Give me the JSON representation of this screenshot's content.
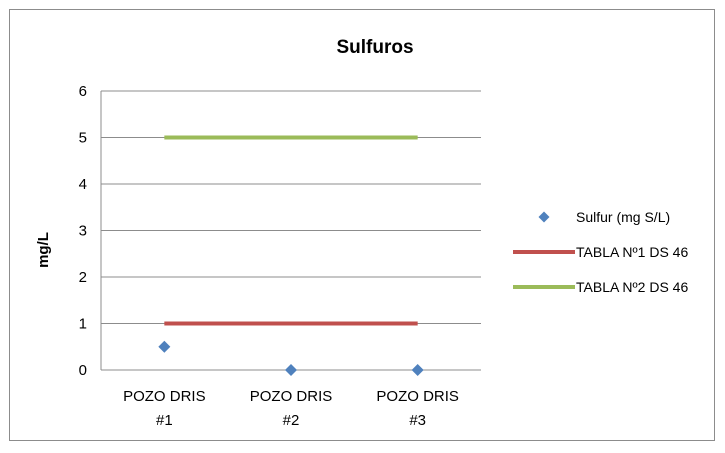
{
  "chart_data": {
    "type": "line",
    "title": "Sulfuros",
    "xlabel": "",
    "ylabel": "mg/L",
    "categories": [
      [
        "POZO DRIS",
        "#1"
      ],
      [
        "POZO DRIS",
        "#2"
      ],
      [
        "POZO DRIS",
        "#3"
      ]
    ],
    "ylim": [
      0,
      6
    ],
    "yticks": [
      "0",
      "1",
      "2",
      "3",
      "4",
      "5",
      "6"
    ],
    "grid": true,
    "legend_position": "right",
    "series": [
      {
        "name": "Sulfur (mg S/L)",
        "kind": "marker",
        "marker": "diamond",
        "color": "#4f81bd",
        "values": [
          0.5,
          0,
          0
        ]
      },
      {
        "name": "TABLA Nº1 DS 46",
        "kind": "line",
        "color": "#c0504d",
        "values": [
          1,
          1,
          1
        ]
      },
      {
        "name": "TABLA Nº2 DS 46",
        "kind": "line",
        "color": "#9bbb59",
        "values": [
          5,
          5,
          5
        ]
      }
    ]
  }
}
